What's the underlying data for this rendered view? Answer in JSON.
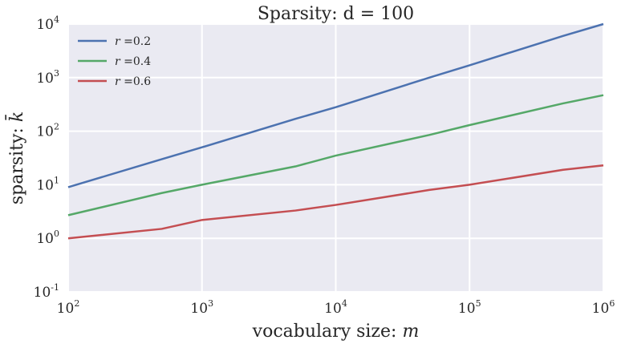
{
  "chart_data": {
    "type": "line",
    "title": "Sparsity: d = 100",
    "xlabel": {
      "text": "vocabulary size: ",
      "var": "m"
    },
    "ylabel": {
      "text": "sparsity: ",
      "var": "k̄"
    },
    "xscale": "log",
    "yscale": "log",
    "xlim": [
      100,
      1000000
    ],
    "ylim": [
      0.1,
      10000
    ],
    "xticks": [
      {
        "base": "10",
        "exp": "2",
        "value": 100
      },
      {
        "base": "10",
        "exp": "3",
        "value": 1000
      },
      {
        "base": "10",
        "exp": "4",
        "value": 10000
      },
      {
        "base": "10",
        "exp": "5",
        "value": 100000
      },
      {
        "base": "10",
        "exp": "6",
        "value": 1000000
      }
    ],
    "yticks": [
      {
        "base": "10",
        "exp": "-1",
        "value": 0.1
      },
      {
        "base": "10",
        "exp": "0",
        "value": 1
      },
      {
        "base": "10",
        "exp": "1",
        "value": 10
      },
      {
        "base": "10",
        "exp": "2",
        "value": 100
      },
      {
        "base": "10",
        "exp": "3",
        "value": 1000
      },
      {
        "base": "10",
        "exp": "4",
        "value": 10000
      }
    ],
    "grid": true,
    "legend_position": "top-left",
    "x": [
      100,
      500,
      1000,
      5000,
      10000,
      50000,
      100000,
      500000,
      1000000
    ],
    "series": [
      {
        "name": "r = 0.2",
        "var": "r",
        "label_value": "0.2",
        "color": "#4c72b0",
        "values": [
          9,
          30,
          50,
          170,
          280,
          1000,
          1700,
          6000,
          10000
        ]
      },
      {
        "name": "r = 0.4",
        "var": "r",
        "label_value": "0.4",
        "color": "#55a868",
        "values": [
          2.7,
          7,
          10,
          22,
          35,
          85,
          130,
          330,
          470
        ]
      },
      {
        "name": "r = 0.6",
        "var": "r",
        "label_value": "0.6",
        "color": "#c44e52",
        "values": [
          1,
          1.5,
          2.2,
          3.3,
          4.2,
          8,
          10,
          19,
          23
        ]
      }
    ],
    "colors": {
      "plot_background": "#eaeaf2",
      "grid": "#ffffff",
      "text": "#262626"
    }
  }
}
